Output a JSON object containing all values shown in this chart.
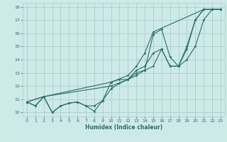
{
  "xlabel": "Humidex (Indice chaleur)",
  "xlim": [
    -0.5,
    23.5
  ],
  "ylim": [
    9.7,
    18.3
  ],
  "xticks": [
    0,
    1,
    2,
    3,
    4,
    5,
    6,
    7,
    8,
    9,
    10,
    11,
    12,
    13,
    14,
    15,
    16,
    17,
    18,
    19,
    20,
    21,
    22,
    23
  ],
  "yticks": [
    10,
    11,
    12,
    13,
    14,
    15,
    16,
    17,
    18
  ],
  "bg_color": "#ceeae8",
  "grid_color": "#aacfcc",
  "line_color": "#276e68",
  "series": [
    {
      "x": [
        0,
        1,
        2,
        3,
        4,
        5,
        6,
        7,
        8,
        9,
        10,
        11,
        12,
        13,
        14,
        15,
        16,
        17,
        18,
        19,
        20,
        21,
        22,
        23
      ],
      "y": [
        10.8,
        10.5,
        11.2,
        10.0,
        10.5,
        10.7,
        10.8,
        10.5,
        10.1,
        10.9,
        12.3,
        12.5,
        12.5,
        12.8,
        13.2,
        15.9,
        16.3,
        14.2,
        13.5,
        14.8,
        17.0,
        17.8,
        17.8,
        17.8
      ]
    },
    {
      "x": [
        0,
        1,
        2,
        3,
        4,
        5,
        6,
        7,
        8,
        9,
        10,
        11,
        12,
        13,
        14,
        15,
        16,
        17,
        18,
        19,
        20,
        21,
        22,
        23
      ],
      "y": [
        10.8,
        10.5,
        11.2,
        10.0,
        10.5,
        10.7,
        10.8,
        10.5,
        10.5,
        10.9,
        11.8,
        12.2,
        12.5,
        13.2,
        13.5,
        14.5,
        14.8,
        13.5,
        13.5,
        15.0,
        17.0,
        17.8,
        17.8,
        17.8
      ]
    },
    {
      "x": [
        0,
        2,
        10,
        12,
        13,
        14,
        15,
        21,
        22,
        23
      ],
      "y": [
        10.8,
        11.2,
        12.3,
        12.8,
        13.5,
        14.5,
        16.1,
        17.8,
        17.8,
        17.8
      ]
    },
    {
      "x": [
        0,
        2,
        10,
        12,
        13,
        14,
        15,
        16,
        17,
        18,
        19,
        20,
        21,
        22,
        23
      ],
      "y": [
        10.8,
        11.2,
        12.0,
        12.5,
        13.0,
        13.2,
        13.5,
        14.8,
        13.5,
        13.5,
        14.0,
        15.0,
        17.0,
        17.8,
        17.8
      ]
    }
  ]
}
